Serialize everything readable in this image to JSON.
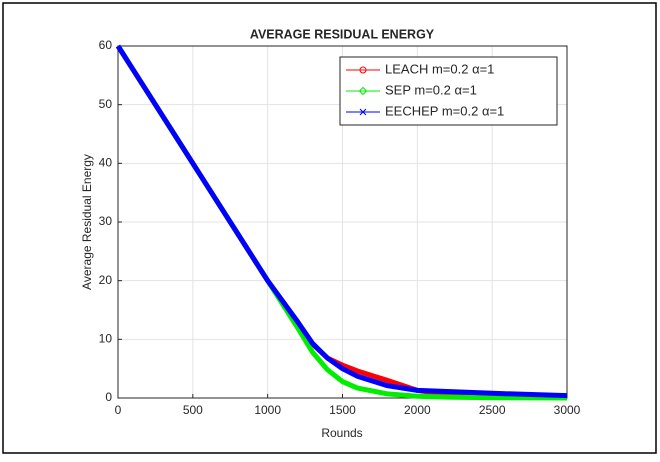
{
  "chart_data": {
    "type": "line",
    "title": "AVERAGE RESIDUAL ENERGY",
    "xlabel": "Rounds",
    "ylabel": "Average Residual Energy",
    "x": [
      0,
      200,
      400,
      600,
      800,
      1000,
      1100,
      1200,
      1300,
      1400,
      1500,
      1600,
      1800,
      2000,
      2200,
      2500,
      3000
    ],
    "series": [
      {
        "name": "LEACH m=0.2 α=1",
        "color": "#ff0000",
        "marker": "circle",
        "values": [
          60,
          52,
          44,
          36,
          28,
          20,
          16.5,
          13,
          9.2,
          6.8,
          5.6,
          4.6,
          3,
          1.3,
          0.6,
          0.3,
          0.1
        ]
      },
      {
        "name": "SEP m=0.2 α=1",
        "color": "#00ee00",
        "marker": "diamond",
        "values": [
          60,
          52,
          44,
          36,
          28,
          20,
          16,
          12,
          7.8,
          4.8,
          2.8,
          1.7,
          0.7,
          0.3,
          0.15,
          0.05,
          0
        ]
      },
      {
        "name": "EECHEP m=0.2 α=1",
        "color": "#0000ff",
        "marker": "x",
        "values": [
          60,
          52,
          44,
          36,
          28,
          20,
          16.5,
          13,
          9.3,
          6.8,
          5,
          3.7,
          2.1,
          1.3,
          1.1,
          0.8,
          0.4
        ]
      }
    ],
    "xlim": [
      0,
      3000
    ],
    "xticks": [
      0,
      500,
      1000,
      1500,
      2000,
      2500,
      3000
    ],
    "ylim": [
      0,
      60
    ],
    "yticks": [
      0,
      10,
      20,
      30,
      40,
      50,
      60
    ],
    "grid": true,
    "legend": "upper right"
  }
}
